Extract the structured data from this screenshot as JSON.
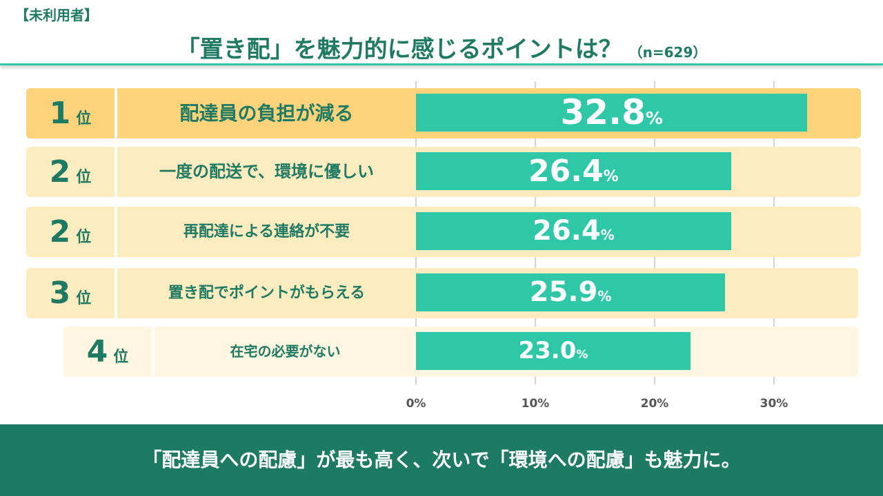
{
  "segment": "【未利用者】",
  "title": "「置き配」を魅力的に感じるポイントは？",
  "sample": "（n=629）",
  "rank_suffix": "位",
  "chart_data": {
    "type": "bar",
    "orientation": "horizontal",
    "categories": [
      "配達員の負担が減る",
      "一度の配送で、環境に優しい",
      "再配達による連絡が不要",
      "置き配でポイントがもらえる",
      "在宅の必要がない"
    ],
    "ranks": [
      "1",
      "2",
      "2",
      "3",
      "4"
    ],
    "values": [
      32.8,
      26.4,
      26.4,
      25.9,
      23.0
    ],
    "value_labels": [
      "32.8",
      "26.4",
      "26.4",
      "25.9",
      "23.0"
    ],
    "unit": "%",
    "xlim": [
      0,
      37
    ],
    "xticks": [
      "0%",
      "10%",
      "20%",
      "30%"
    ],
    "grid": true
  },
  "colors": {
    "bar": "#2ec7a8",
    "text": "#1e7a62",
    "rank1_bg": "#fcd37a",
    "row_bg": "#fdecc0",
    "rank4_bg": "#fef6e0",
    "footer": "#1d7a63"
  },
  "footer": "「配達員への配慮」が最も高く、次いで「環境への配慮」も魅力に。"
}
